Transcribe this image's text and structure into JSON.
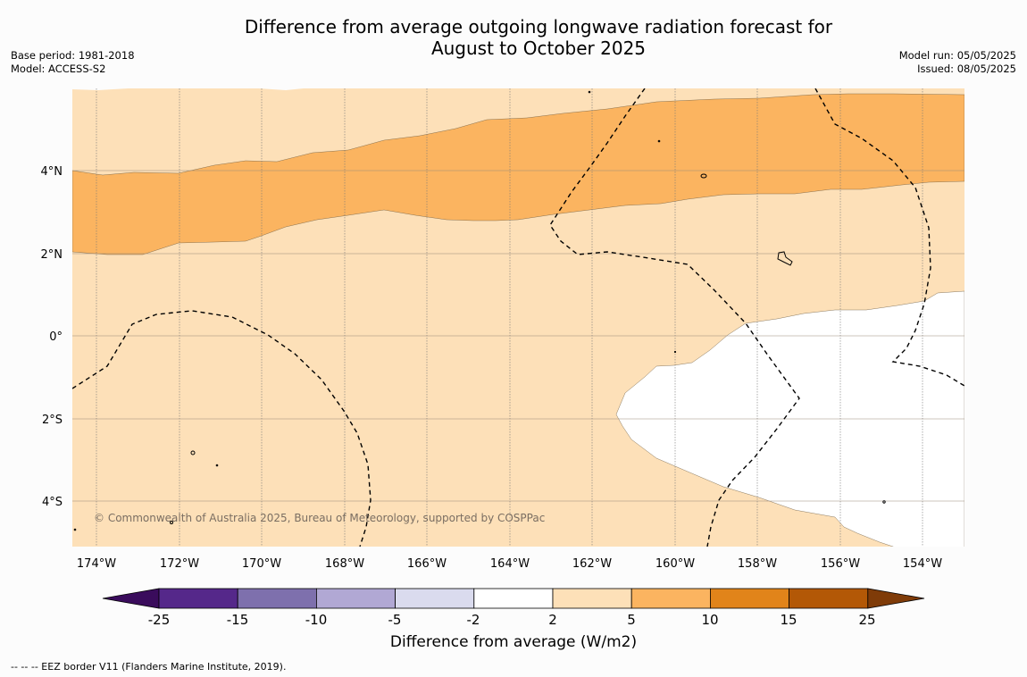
{
  "title_line1": "Difference from average outgoing longwave radiation forecast for",
  "title_line2": "August to October 2025",
  "base_period": "Base period: 1981-2018",
  "model": "Model: ACCESS-S2",
  "model_run": "Model run: 05/05/2025",
  "issued": "Issued: 08/05/2025",
  "copyright": "© Commonwealth of Australia 2025, Bureau of Meteorology, supported by COSPPac",
  "footnote": "--  --  -- EEZ border V11 (Flanders Marine Institute, 2019).",
  "lon_labels": [
    "174°W",
    "172°W",
    "170°W",
    "168°W",
    "166°W",
    "164°W",
    "162°W",
    "160°W",
    "158°W",
    "156°W",
    "154°W"
  ],
  "lat_labels": [
    "4°N",
    "2°N",
    "0°",
    "2°S",
    "4°S"
  ],
  "colorbar": {
    "title": "Difference from average (W/m2)",
    "ticks": [
      "-25",
      "-15",
      "-10",
      "-5",
      "-2",
      "2",
      "5",
      "10",
      "15",
      "25"
    ],
    "colors": [
      "#3a0c5c",
      "#55288a",
      "#7e70ad",
      "#b1a8d4",
      "#dadbee",
      "#ffffff",
      "#fde0b8",
      "#fbb460",
      "#e1841a",
      "#b35806",
      "#7f3b08"
    ]
  }
}
